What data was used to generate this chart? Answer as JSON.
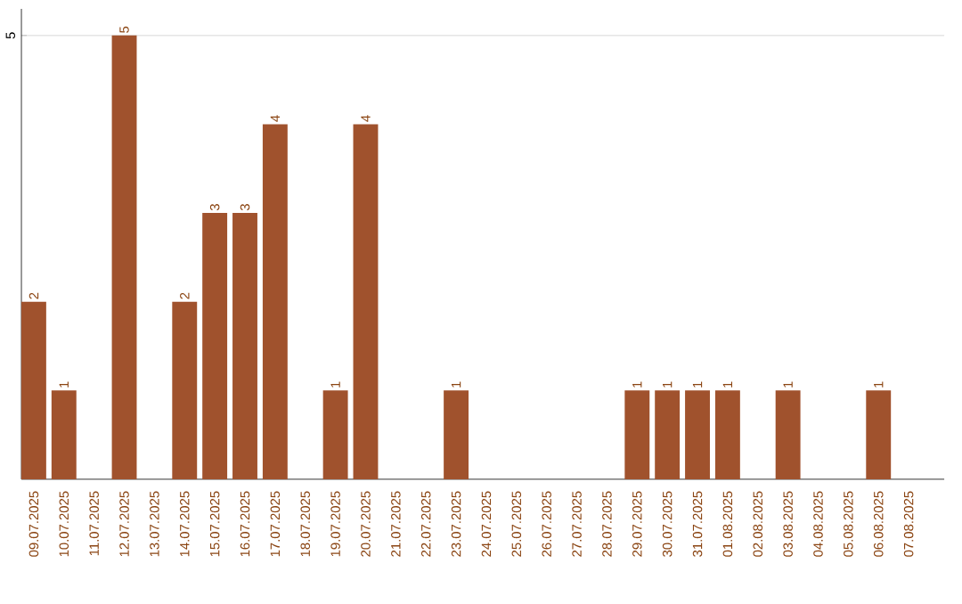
{
  "chart_data": {
    "type": "bar",
    "categories": [
      "09.07.2025",
      "10.07.2025",
      "11.07.2025",
      "12.07.2025",
      "13.07.2025",
      "14.07.2025",
      "15.07.2025",
      "16.07.2025",
      "17.07.2025",
      "18.07.2025",
      "19.07.2025",
      "20.07.2025",
      "21.07.2025",
      "22.07.2025",
      "23.07.2025",
      "24.07.2025",
      "25.07.2025",
      "26.07.2025",
      "27.07.2025",
      "28.07.2025",
      "29.07.2025",
      "30.07.2025",
      "31.07.2025",
      "01.08.2025",
      "02.08.2025",
      "03.08.2025",
      "04.08.2025",
      "05.08.2025",
      "06.08.2025",
      "07.08.2025"
    ],
    "values": [
      2,
      1,
      0,
      5,
      0,
      2,
      3,
      3,
      4,
      0,
      1,
      4,
      0,
      0,
      1,
      0,
      0,
      0,
      0,
      0,
      1,
      1,
      1,
      1,
      0,
      1,
      0,
      0,
      1,
      0
    ],
    "value_labels": [
      "2",
      "1",
      null,
      "5",
      null,
      "2",
      "3",
      "3",
      "4",
      null,
      "1",
      "4",
      null,
      null,
      "1",
      null,
      null,
      null,
      null,
      null,
      "1",
      "1",
      "1",
      "1",
      null,
      "1",
      null,
      null,
      "1",
      null
    ],
    "color": "#a0522d",
    "ylim": [
      0,
      5.3
    ],
    "yticks": [
      5
    ],
    "grid": "y"
  }
}
